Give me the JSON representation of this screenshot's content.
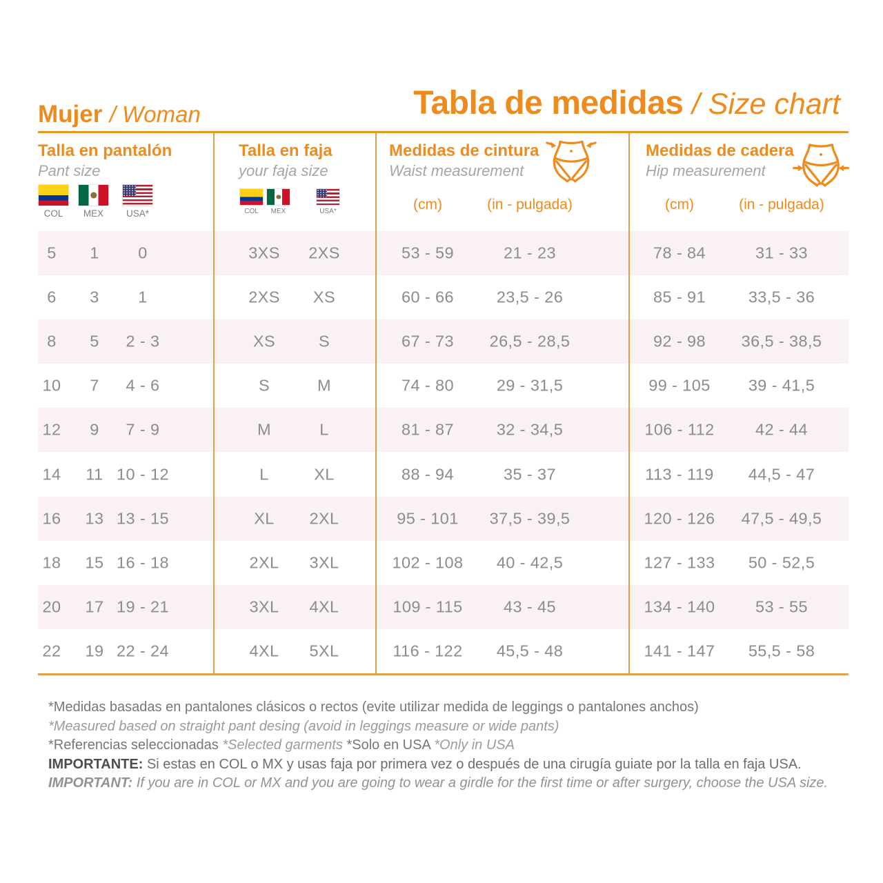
{
  "accent_color": "#EE8B1E",
  "row_stripe_color": "#FAF1F5",
  "header": {
    "left_bold": "Mujer",
    "left_italic": "/ Woman",
    "right_bold": "Tabla de medidas",
    "right_italic": "/ Size chart"
  },
  "sections": {
    "pant": {
      "title": "Talla en pantalón",
      "subtitle": "Pant size",
      "flags": [
        "COL",
        "MEX",
        "USA*"
      ]
    },
    "faja": {
      "title": "Talla en faja",
      "subtitle": "your faja size",
      "flags": [
        "COL",
        "MEX",
        "USA*"
      ]
    },
    "waist": {
      "title": "Medidas de cintura",
      "subtitle": "Waist  measurement",
      "units": [
        "(cm)",
        "(in - pulgada)"
      ]
    },
    "hip": {
      "title": "Medidas de cadera",
      "subtitle": "Hip  measurement",
      "units": [
        "(cm)",
        "(in - pulgada)"
      ]
    }
  },
  "chart_data": {
    "type": "table",
    "title": "Tabla de medidas / Size chart",
    "columns": [
      "Pant COL",
      "Pant MEX",
      "Pant USA*",
      "Faja COL/MEX",
      "Faja USA*",
      "Waist (cm)",
      "Waist (in - pulgada)",
      "Hip (cm)",
      "Hip (in - pulgada)"
    ],
    "rows": [
      [
        "5",
        "1",
        "0",
        "3XS",
        "2XS",
        "53 - 59",
        "21 - 23",
        "78 - 84",
        "31 - 33"
      ],
      [
        "6",
        "3",
        "1",
        "2XS",
        "XS",
        "60 - 66",
        "23,5 - 26",
        "85 - 91",
        "33,5 - 36"
      ],
      [
        "8",
        "5",
        "2 - 3",
        "XS",
        "S",
        "67 - 73",
        "26,5 - 28,5",
        "92 - 98",
        "36,5 - 38,5"
      ],
      [
        "10",
        "7",
        "4 - 6",
        "S",
        "M",
        "74 - 80",
        "29 - 31,5",
        "99 - 105",
        "39 - 41,5"
      ],
      [
        "12",
        "9",
        "7 - 9",
        "M",
        "L",
        "81 - 87",
        "32 - 34,5",
        "106 - 112",
        "42 - 44"
      ],
      [
        "14",
        "11",
        "10 - 12",
        "L",
        "XL",
        "88 - 94",
        "35 - 37",
        "113 - 119",
        "44,5 - 47"
      ],
      [
        "16",
        "13",
        "13 - 15",
        "XL",
        "2XL",
        "95 - 101",
        "37,5 - 39,5",
        "120 - 126",
        "47,5 - 49,5"
      ],
      [
        "18",
        "15",
        "16 - 18",
        "2XL",
        "3XL",
        "102 - 108",
        "40 - 42,5",
        "127 - 133",
        "50 - 52,5"
      ],
      [
        "20",
        "17",
        "19 - 21",
        "3XL",
        "4XL",
        "109 - 115",
        "43 - 45",
        "134 - 140",
        "53 - 55"
      ],
      [
        "22",
        "19",
        "22 - 24",
        "4XL",
        "5XL",
        "116 - 122",
        "45,5 - 48",
        "141 - 147",
        "55,5 - 58"
      ]
    ]
  },
  "footer": {
    "note_es": "*Medidas basadas en pantalones clásicos o rectos (evite utilizar medida de leggings o pantalones anchos)",
    "note_en": "*Measured based on straight pant desing (avoid in leggings measure or wide pants)",
    "refs_es": "*Referencias seleccionadas ",
    "refs_en": "*Selected garments ",
    "usa_es": "*Solo en USA ",
    "usa_en": "*Only in USA",
    "important_label_es": "IMPORTANTE: ",
    "important_text_es": "Si estas en COL o MX y usas faja por primera vez o después de una cirugía guiate por la talla en faja USA.",
    "important_label_en": "IMPORTANT: ",
    "important_text_en": "If you are in COL or MX and you are going to wear a girdle for the first time or after surgery, choose the USA size."
  }
}
